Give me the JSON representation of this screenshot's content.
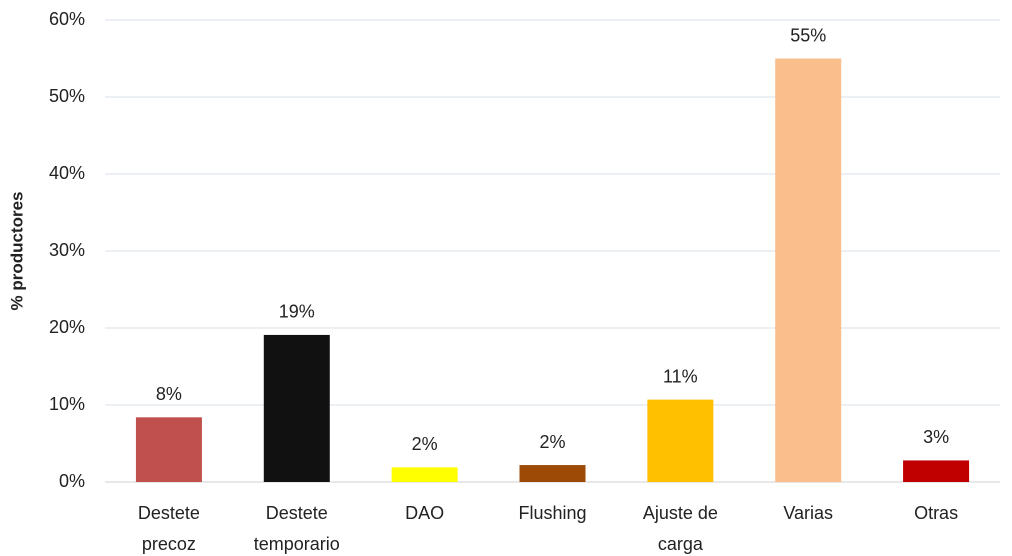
{
  "chart_data": {
    "type": "bar",
    "y_label": "% productores",
    "categories": [
      "Destete\nprecoz",
      "Destete\ntemporario",
      "DAO",
      "Flushing",
      "Ajuste de\ncarga",
      "Varias",
      "Otras"
    ],
    "values": [
      8.4,
      19.1,
      1.9,
      2.2,
      10.7,
      55,
      2.8
    ],
    "value_labels": [
      "8%",
      "19%",
      "2%",
      "2%",
      "11%",
      "55%",
      "3%"
    ],
    "colors": [
      "#c0504d",
      "#111111",
      "#ffff00",
      "#9c4a06",
      "#ffc000",
      "#f9be8c",
      "#c00000"
    ],
    "ylim": [
      0,
      60
    ],
    "yticks": [
      {
        "value": 0,
        "label": "0%"
      },
      {
        "value": 10,
        "label": "10%"
      },
      {
        "value": 20,
        "label": "20%"
      },
      {
        "value": 30,
        "label": "30%"
      },
      {
        "value": 40,
        "label": "40%"
      },
      {
        "value": 50,
        "label": "50%"
      },
      {
        "value": 60,
        "label": "60%"
      }
    ],
    "grid": true
  }
}
